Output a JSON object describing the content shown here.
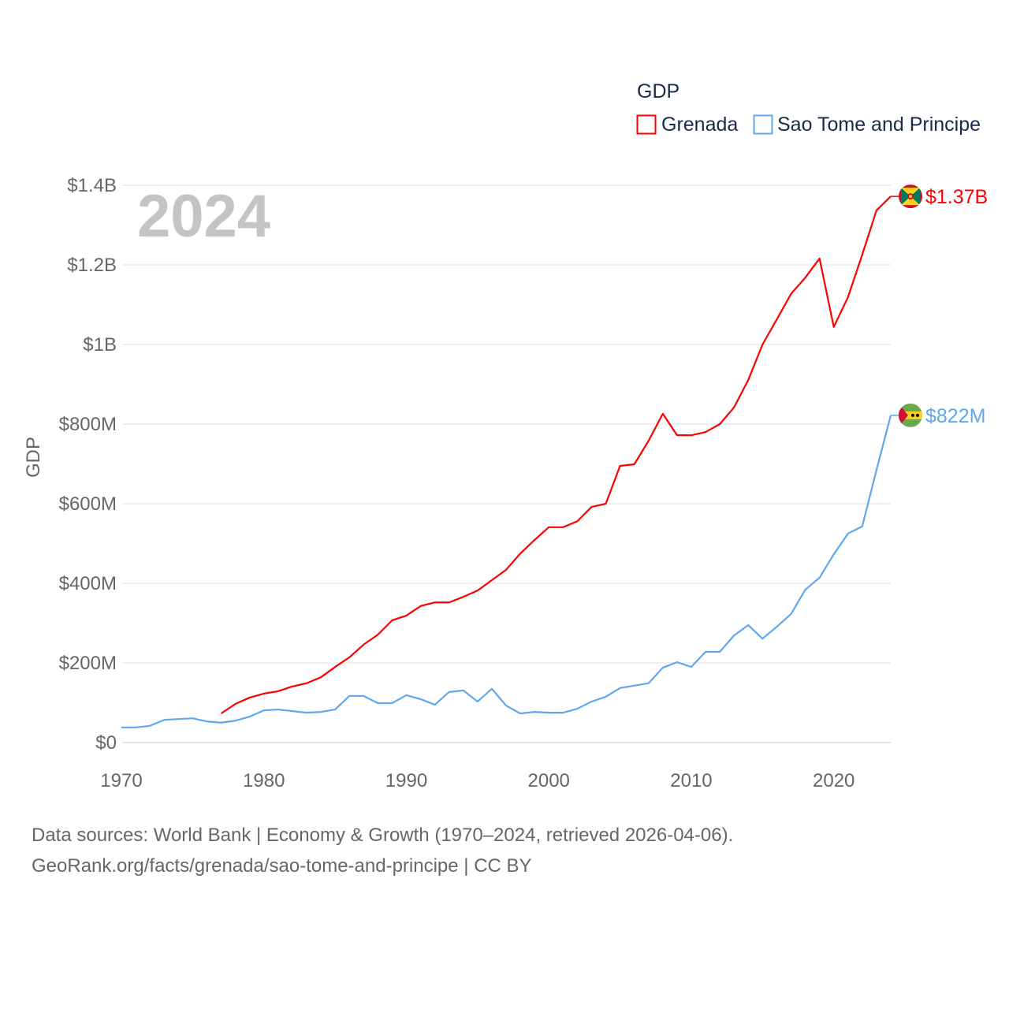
{
  "chart_data": {
    "type": "line",
    "title": "GDP",
    "year_label": "2024",
    "ylabel": "GDP",
    "xlabel": "",
    "xlim": [
      1970,
      2024
    ],
    "ylim": [
      0,
      1.4
    ],
    "y_unit": "billion USD",
    "grid": true,
    "legend_placement": "top-right",
    "x_ticks": [
      1970,
      1980,
      1990,
      2000,
      2010,
      2020
    ],
    "x_tick_labels": [
      "1970",
      "1980",
      "1990",
      "2000",
      "2010",
      "2020"
    ],
    "y_ticks": [
      0,
      0.2,
      0.4,
      0.6,
      0.8,
      1.0,
      1.2,
      1.4
    ],
    "y_tick_labels": [
      "$0",
      "$200M",
      "$400M",
      "$600M",
      "$800M",
      "$1B",
      "$1.2B",
      "$1.4B"
    ],
    "series": [
      {
        "name": "Grenada",
        "color": "#ff0000",
        "end_label": "$1.37B",
        "flag": "grenada-flag",
        "start_year": 1977,
        "values": [
          0.073,
          0.097,
          0.113,
          0.123,
          0.129,
          0.141,
          0.149,
          0.164,
          0.19,
          0.214,
          0.246,
          0.271,
          0.307,
          0.319,
          0.343,
          0.352,
          0.352,
          0.366,
          0.382,
          0.408,
          0.434,
          0.475,
          0.509,
          0.541,
          0.541,
          0.556,
          0.592,
          0.6,
          0.695,
          0.699,
          0.758,
          0.826,
          0.772,
          0.772,
          0.78,
          0.8,
          0.842,
          0.911,
          1.0,
          1.063,
          1.127,
          1.168,
          1.216,
          1.044,
          1.119,
          1.226,
          1.337,
          1.372
        ]
      },
      {
        "name": "Sao Tome and Principe",
        "color": "#5ea8ec",
        "end_label": "$822M",
        "flag": "sao-tome-flag",
        "start_year": 1970,
        "values": [
          0.038,
          0.038,
          0.042,
          0.057,
          0.059,
          0.061,
          0.053,
          0.05,
          0.055,
          0.065,
          0.081,
          0.083,
          0.079,
          0.075,
          0.077,
          0.083,
          0.117,
          0.117,
          0.099,
          0.099,
          0.119,
          0.109,
          0.095,
          0.127,
          0.131,
          0.103,
          0.135,
          0.093,
          0.073,
          0.077,
          0.075,
          0.075,
          0.085,
          0.103,
          0.115,
          0.137,
          0.143,
          0.149,
          0.188,
          0.202,
          0.19,
          0.228,
          0.228,
          0.269,
          0.295,
          0.261,
          0.291,
          0.323,
          0.384,
          0.414,
          0.473,
          0.525,
          0.543,
          0.685,
          0.822
        ]
      }
    ]
  },
  "footer": {
    "line1": "Data sources: World Bank | Economy & Growth (1970–2024, retrieved 2026-04-06).",
    "line2": "GeoRank.org/facts/grenada/sao-tome-and-principe | CC BY"
  }
}
